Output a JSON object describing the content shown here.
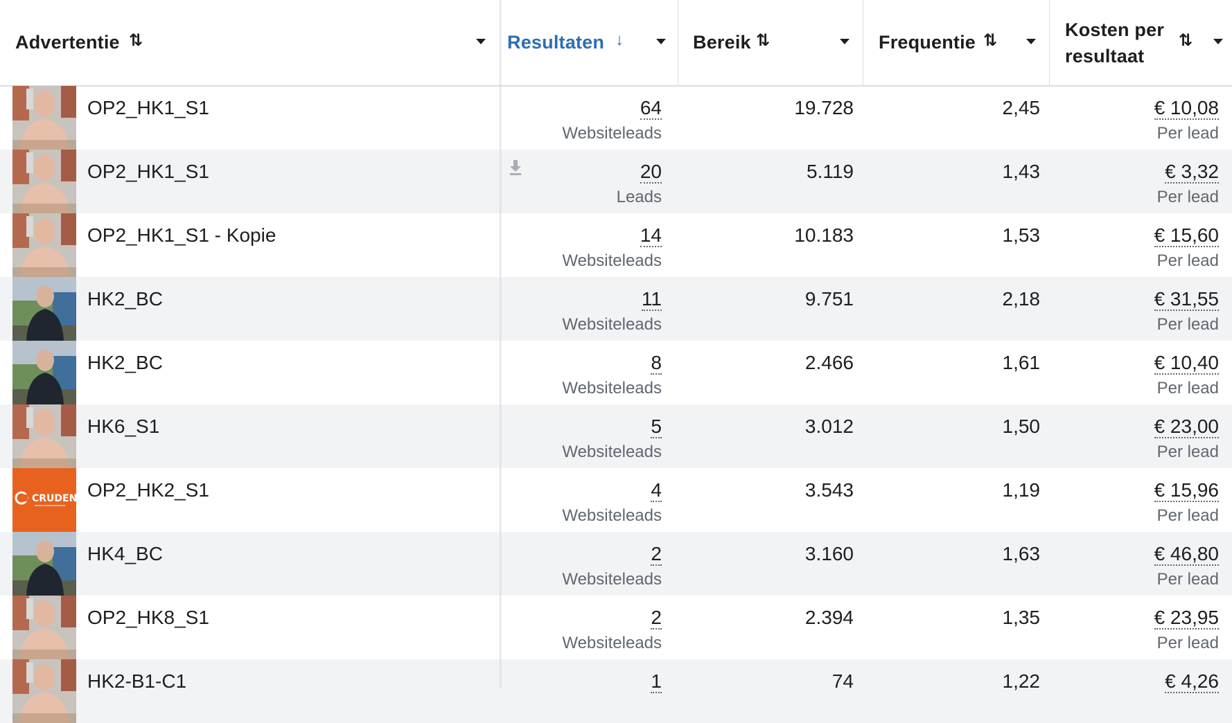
{
  "columns": {
    "ad": "Advertentie",
    "results": "Resultaten",
    "reach": "Bereik",
    "frequency": "Frequentie",
    "cost_line1": "Kosten per",
    "cost_line2": "resultaat"
  },
  "rows": [
    {
      "name": "OP2_HK1_S1",
      "results": "64",
      "results_type": "Websiteleads",
      "reach": "19.728",
      "frequency": "2,45",
      "cost": "€ 10,08",
      "cost_unit": "Per lead"
    },
    {
      "name": "OP2_HK1_S1",
      "results": "20",
      "results_type": "Leads",
      "reach": "5.119",
      "frequency": "1,43",
      "cost": "€ 3,32",
      "cost_unit": "Per lead"
    },
    {
      "name": "OP2_HK1_S1 - Kopie",
      "results": "14",
      "results_type": "Websiteleads",
      "reach": "10.183",
      "frequency": "1,53",
      "cost": "€ 15,60",
      "cost_unit": "Per lead"
    },
    {
      "name": "HK2_BC",
      "results": "11",
      "results_type": "Websiteleads",
      "reach": "9.751",
      "frequency": "2,18",
      "cost": "€ 31,55",
      "cost_unit": "Per lead"
    },
    {
      "name": "HK2_BC",
      "results": "8",
      "results_type": "Websiteleads",
      "reach": "2.466",
      "frequency": "1,61",
      "cost": "€ 10,40",
      "cost_unit": "Per lead"
    },
    {
      "name": "HK6_S1",
      "results": "5",
      "results_type": "Websiteleads",
      "reach": "3.012",
      "frequency": "1,50",
      "cost": "€ 23,00",
      "cost_unit": "Per lead"
    },
    {
      "name": "OP2_HK2_S1",
      "results": "4",
      "results_type": "Websiteleads",
      "reach": "3.543",
      "frequency": "1,19",
      "cost": "€ 15,96",
      "cost_unit": "Per lead"
    },
    {
      "name": "HK4_BC",
      "results": "2",
      "results_type": "Websiteleads",
      "reach": "3.160",
      "frequency": "1,63",
      "cost": "€ 46,80",
      "cost_unit": "Per lead"
    },
    {
      "name": "OP2_HK8_S1",
      "results": "2",
      "results_type": "Websiteleads",
      "reach": "2.394",
      "frequency": "1,35",
      "cost": "€ 23,95",
      "cost_unit": "Per lead"
    },
    {
      "name": "HK2-B1-C1",
      "results": "1",
      "results_type": "",
      "reach": "74",
      "frequency": "1,22",
      "cost": "€ 4,26",
      "cost_unit": ""
    }
  ],
  "thumbs": [
    "person-light",
    "person-light",
    "person-light",
    "person-dark",
    "person-dark",
    "person-light",
    "cruden-logo",
    "person-dark",
    "person-light",
    "person-light"
  ],
  "logo_text": "CRUDEN",
  "colors": {
    "accent": "#2d6db5",
    "alt_row": "#f2f3f5",
    "border": "#dadde1",
    "muted": "#606770",
    "logo_bg": "#e8621f"
  }
}
